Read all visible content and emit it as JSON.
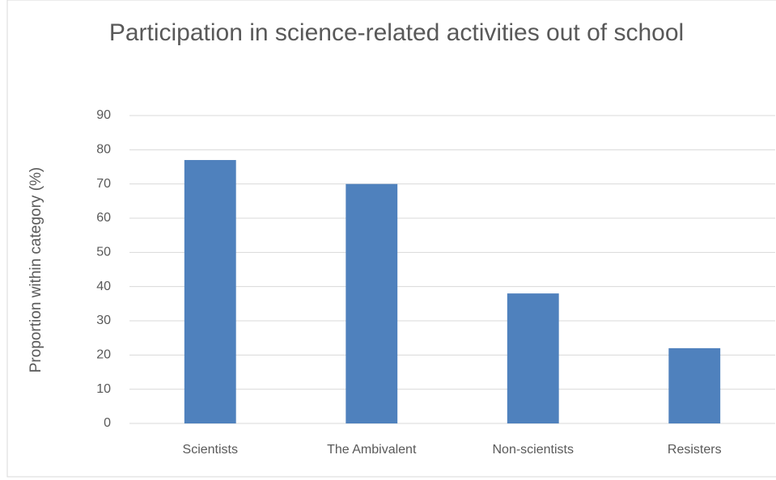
{
  "chart_data": {
    "type": "bar",
    "title": "Participation in science-related activities out of school",
    "y_label": "Proportion within category (%)",
    "categories": [
      "Scientists",
      "The Ambivalent",
      "Non-scientists",
      "Resisters"
    ],
    "values": [
      77,
      70,
      38,
      22
    ],
    "color": "#4f81bd",
    "ylim": [
      0,
      90
    ],
    "yticks": [
      0,
      10,
      20,
      30,
      40,
      50,
      60,
      70,
      80,
      90
    ],
    "grid": true
  }
}
